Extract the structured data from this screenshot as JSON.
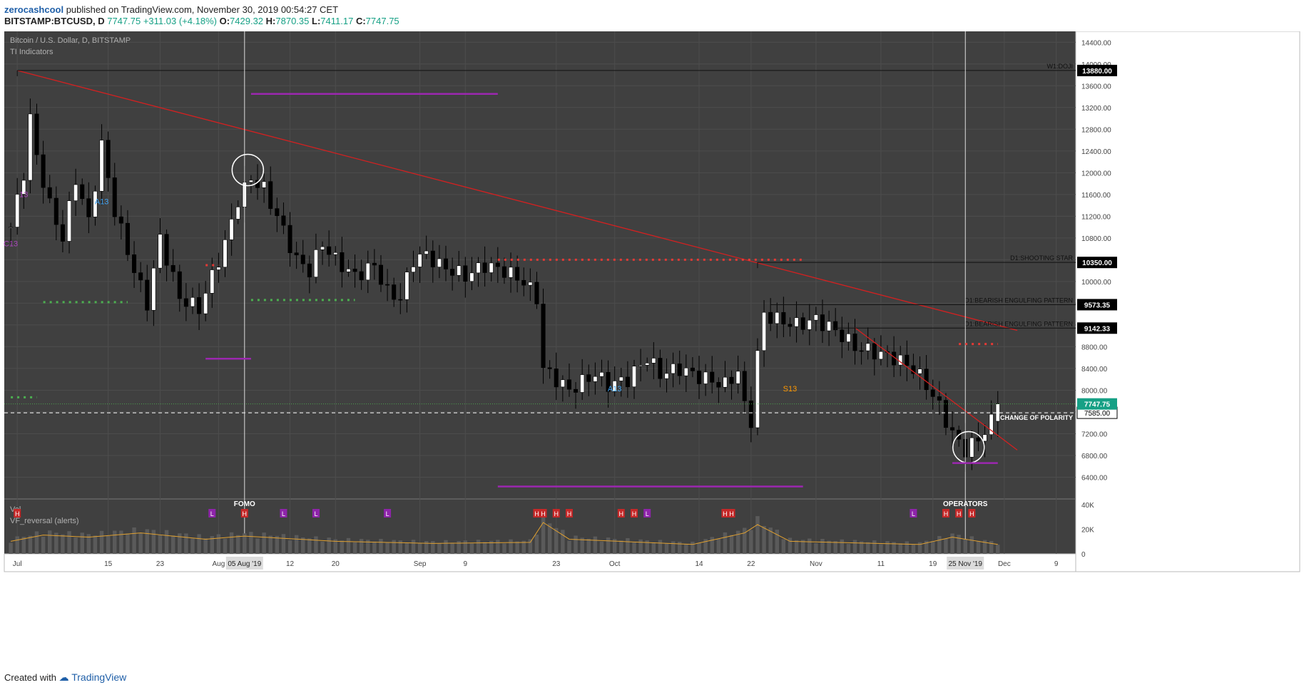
{
  "header": {
    "user": "zerocashcool",
    "published": " published on TradingView.com, November 30, 2019 00:54:27 CET",
    "symbol": "BITSTAMP:BTCUSD, D",
    "last": "7747.75",
    "change": "+311.03 (+4.18%)",
    "o_label": "O:",
    "o": "7429.32",
    "h_label": "H:",
    "h": "7870.35",
    "l_label": "L:",
    "l": "7411.17",
    "c_label": "C:",
    "c": "7747.75"
  },
  "footer": {
    "created": "Created with",
    "brand": "TradingView"
  },
  "colors": {
    "bg": "#404040",
    "grid": "#4d4d4d",
    "up": "#ffffff",
    "down": "#000000",
    "trend": "#d42020",
    "setup_red": "#e53935",
    "setup_green": "#4caf50",
    "magenta": "#9c27b0",
    "price_badge": "#16a085"
  },
  "chart_data": {
    "type": "candlestick",
    "title": "Bitcoin / U.S. Dollar, D, BITSTAMP",
    "subtitle": "TI Indicators",
    "y_ticks": [
      "14400.00",
      "14000.00",
      "13600.00",
      "13200.00",
      "12800.00",
      "12400.00",
      "12000.00",
      "11600.00",
      "11200.00",
      "10800.00",
      "10400.00",
      "10000.00",
      "9600.00",
      "9200.00",
      "8800.00",
      "8400.00",
      "8000.00",
      "7600.00",
      "7200.00",
      "6800.00",
      "6400.00"
    ],
    "ylim": [
      6000,
      14600
    ],
    "x_ticks": [
      {
        "d": 1,
        "label": "Jul"
      },
      {
        "d": 15,
        "label": "15"
      },
      {
        "d": 23,
        "label": "23"
      },
      {
        "d": 32,
        "label": "Aug"
      },
      {
        "d": 43,
        "label": "12"
      },
      {
        "d": 50,
        "label": "20"
      },
      {
        "d": 63,
        "label": "Sep"
      },
      {
        "d": 70,
        "label": "9"
      },
      {
        "d": 84,
        "label": "23"
      },
      {
        "d": 93,
        "label": "Oct"
      },
      {
        "d": 106,
        "label": "14"
      },
      {
        "d": 114,
        "label": "22"
      },
      {
        "d": 124,
        "label": "Nov"
      },
      {
        "d": 134,
        "label": "11"
      },
      {
        "d": 142,
        "label": "19"
      },
      {
        "d": 153,
        "label": "Dec"
      },
      {
        "d": 161,
        "label": "9"
      }
    ],
    "x_highlights": [
      {
        "d": 36,
        "label": "05 Aug '19"
      },
      {
        "d": 147,
        "label": "25 Nov '19"
      }
    ],
    "anchors": [
      {
        "d": 0,
        "p": 11000
      },
      {
        "d": 2,
        "p": 12000
      },
      {
        "d": 3,
        "p": 13000
      },
      {
        "d": 4,
        "p": 12300
      },
      {
        "d": 6,
        "p": 11400
      },
      {
        "d": 8,
        "p": 10800
      },
      {
        "d": 10,
        "p": 11900
      },
      {
        "d": 12,
        "p": 11100
      },
      {
        "d": 14,
        "p": 12500
      },
      {
        "d": 16,
        "p": 11300
      },
      {
        "d": 19,
        "p": 10200
      },
      {
        "d": 21,
        "p": 9600
      },
      {
        "d": 23,
        "p": 10800
      },
      {
        "d": 26,
        "p": 9700
      },
      {
        "d": 29,
        "p": 9500
      },
      {
        "d": 31,
        "p": 10100
      },
      {
        "d": 33,
        "p": 10700
      },
      {
        "d": 35,
        "p": 11500
      },
      {
        "d": 37,
        "p": 11900
      },
      {
        "d": 39,
        "p": 11700
      },
      {
        "d": 41,
        "p": 11200
      },
      {
        "d": 44,
        "p": 10400
      },
      {
        "d": 46,
        "p": 10200
      },
      {
        "d": 48,
        "p": 10700
      },
      {
        "d": 50,
        "p": 10400
      },
      {
        "d": 53,
        "p": 10100
      },
      {
        "d": 56,
        "p": 10300
      },
      {
        "d": 58,
        "p": 9800
      },
      {
        "d": 60,
        "p": 9700
      },
      {
        "d": 62,
        "p": 10400
      },
      {
        "d": 64,
        "p": 10500
      },
      {
        "d": 66,
        "p": 10300
      },
      {
        "d": 70,
        "p": 10100
      },
      {
        "d": 73,
        "p": 10300
      },
      {
        "d": 76,
        "p": 10200
      },
      {
        "d": 79,
        "p": 10000
      },
      {
        "d": 81,
        "p": 9700
      },
      {
        "d": 82,
        "p": 8400
      },
      {
        "d": 84,
        "p": 8200
      },
      {
        "d": 86,
        "p": 8000
      },
      {
        "d": 90,
        "p": 8300
      },
      {
        "d": 92,
        "p": 8100
      },
      {
        "d": 95,
        "p": 8200
      },
      {
        "d": 98,
        "p": 8600
      },
      {
        "d": 100,
        "p": 8300
      },
      {
        "d": 103,
        "p": 8400
      },
      {
        "d": 106,
        "p": 8250
      },
      {
        "d": 110,
        "p": 8100
      },
      {
        "d": 112,
        "p": 8350
      },
      {
        "d": 113,
        "p": 7700
      },
      {
        "d": 114,
        "p": 7450
      },
      {
        "d": 115,
        "p": 8650
      },
      {
        "d": 116,
        "p": 9400
      },
      {
        "d": 118,
        "p": 9300
      },
      {
        "d": 121,
        "p": 9200
      },
      {
        "d": 124,
        "p": 9300
      },
      {
        "d": 127,
        "p": 9100
      },
      {
        "d": 130,
        "p": 8800
      },
      {
        "d": 133,
        "p": 8700
      },
      {
        "d": 136,
        "p": 8600
      },
      {
        "d": 139,
        "p": 8400
      },
      {
        "d": 141,
        "p": 8100
      },
      {
        "d": 143,
        "p": 7700
      },
      {
        "d": 145,
        "p": 7200
      },
      {
        "d": 147,
        "p": 6900
      },
      {
        "d": 149,
        "p": 7100
      },
      {
        "d": 151,
        "p": 7420
      },
      {
        "d": 152,
        "p": 7748
      }
    ],
    "trendlines": [
      {
        "d1": 1,
        "p1": 13880,
        "d2": 155,
        "p2": 9100
      },
      {
        "d1": 130,
        "p1": 9150,
        "d2": 155,
        "p2": 6900
      }
    ],
    "levels": [
      {
        "d1": 1,
        "p": 13880,
        "label": "W1:DOJI",
        "badge": "13880.00"
      },
      {
        "d1": 115,
        "p": 10350,
        "label": "D1:SHOOTING STAR",
        "badge": "10350.00"
      },
      {
        "d1": 117,
        "p": 9573.35,
        "label": "D1:BEARISH ENGULFING PATTERN",
        "badge": "9573.35"
      },
      {
        "d1": 127,
        "p": 9142.33,
        "label": "D1:BEARISH ENGULFING PATTERN",
        "badge": "9142.33"
      }
    ],
    "change_of_polarity": {
      "p": 7585,
      "label": "CHANGE OF POLARITY",
      "badge": "7585.00"
    },
    "last_price": {
      "p": 7747.75,
      "badge": "7747.75"
    },
    "vlines": [
      {
        "d": 36,
        "label": "FOMO"
      },
      {
        "d": 147,
        "label": "OPERATORS"
      }
    ],
    "circles": [
      {
        "d": 36.5,
        "p": 12050
      },
      {
        "d": 147.5,
        "p": 6950
      }
    ],
    "magenta_lines": [
      {
        "d1": 37,
        "d2": 75,
        "p": 13450
      },
      {
        "d1": 30,
        "d2": 37,
        "p": 8580
      },
      {
        "d1": 75,
        "d2": 122,
        "p": 6230
      },
      {
        "d1": 145,
        "d2": 152,
        "p": 6660
      }
    ],
    "dots_red": [
      {
        "d1": 30,
        "d2": 32,
        "p": 10300
      },
      {
        "d1": 75,
        "d2": 122,
        "p": 10400
      },
      {
        "d1": 146,
        "d2": 152,
        "p": 8850
      }
    ],
    "dots_green": [
      {
        "d1": 0,
        "d2": 4,
        "p": 7870
      },
      {
        "d1": 5,
        "d2": 18,
        "p": 9620
      },
      {
        "d1": 37,
        "d2": 53,
        "p": 9660
      }
    ],
    "markers": [
      {
        "d": 0,
        "p": 10650,
        "text": "C13",
        "color": "#ab47bc"
      },
      {
        "d": 2,
        "p": 11550,
        "text": "13",
        "color": "#ab47bc"
      },
      {
        "d": 14,
        "p": 11420,
        "text": "A13",
        "color": "#42a5f5"
      },
      {
        "d": 93,
        "p": 7980,
        "text": "A13",
        "color": "#42a5f5"
      },
      {
        "d": 120,
        "p": 7980,
        "text": "S13",
        "color": "#ff9800"
      }
    ],
    "volume": {
      "label": "Vol",
      "indicator": "VF_reversal (alerts)",
      "ticks": [
        "40K",
        "20K",
        "0"
      ],
      "max": 40000,
      "anchors": [
        {
          "d": 0,
          "v": 12000
        },
        {
          "d": 5,
          "v": 18000
        },
        {
          "d": 12,
          "v": 16000
        },
        {
          "d": 20,
          "v": 20000
        },
        {
          "d": 30,
          "v": 14000
        },
        {
          "d": 36,
          "v": 17000
        },
        {
          "d": 50,
          "v": 12000
        },
        {
          "d": 65,
          "v": 10000
        },
        {
          "d": 80,
          "v": 11000
        },
        {
          "d": 82,
          "v": 30000
        },
        {
          "d": 86,
          "v": 14000
        },
        {
          "d": 105,
          "v": 9000
        },
        {
          "d": 113,
          "v": 20000
        },
        {
          "d": 115,
          "v": 28000
        },
        {
          "d": 120,
          "v": 12000
        },
        {
          "d": 140,
          "v": 9000
        },
        {
          "d": 145,
          "v": 16000
        },
        {
          "d": 152,
          "v": 9000
        }
      ],
      "signals": [
        {
          "d": 1,
          "t": "H"
        },
        {
          "d": 31,
          "t": "L"
        },
        {
          "d": 36,
          "t": "H"
        },
        {
          "d": 42,
          "t": "L"
        },
        {
          "d": 47,
          "t": "L"
        },
        {
          "d": 58,
          "t": "L"
        },
        {
          "d": 81,
          "t": "H"
        },
        {
          "d": 82,
          "t": "H"
        },
        {
          "d": 84,
          "t": "H"
        },
        {
          "d": 86,
          "t": "H"
        },
        {
          "d": 94,
          "t": "H"
        },
        {
          "d": 96,
          "t": "H"
        },
        {
          "d": 98,
          "t": "L"
        },
        {
          "d": 110,
          "t": "H"
        },
        {
          "d": 111,
          "t": "H"
        },
        {
          "d": 139,
          "t": "L"
        },
        {
          "d": 144,
          "t": "H"
        },
        {
          "d": 146,
          "t": "H"
        },
        {
          "d": 148,
          "t": "H"
        }
      ]
    }
  }
}
